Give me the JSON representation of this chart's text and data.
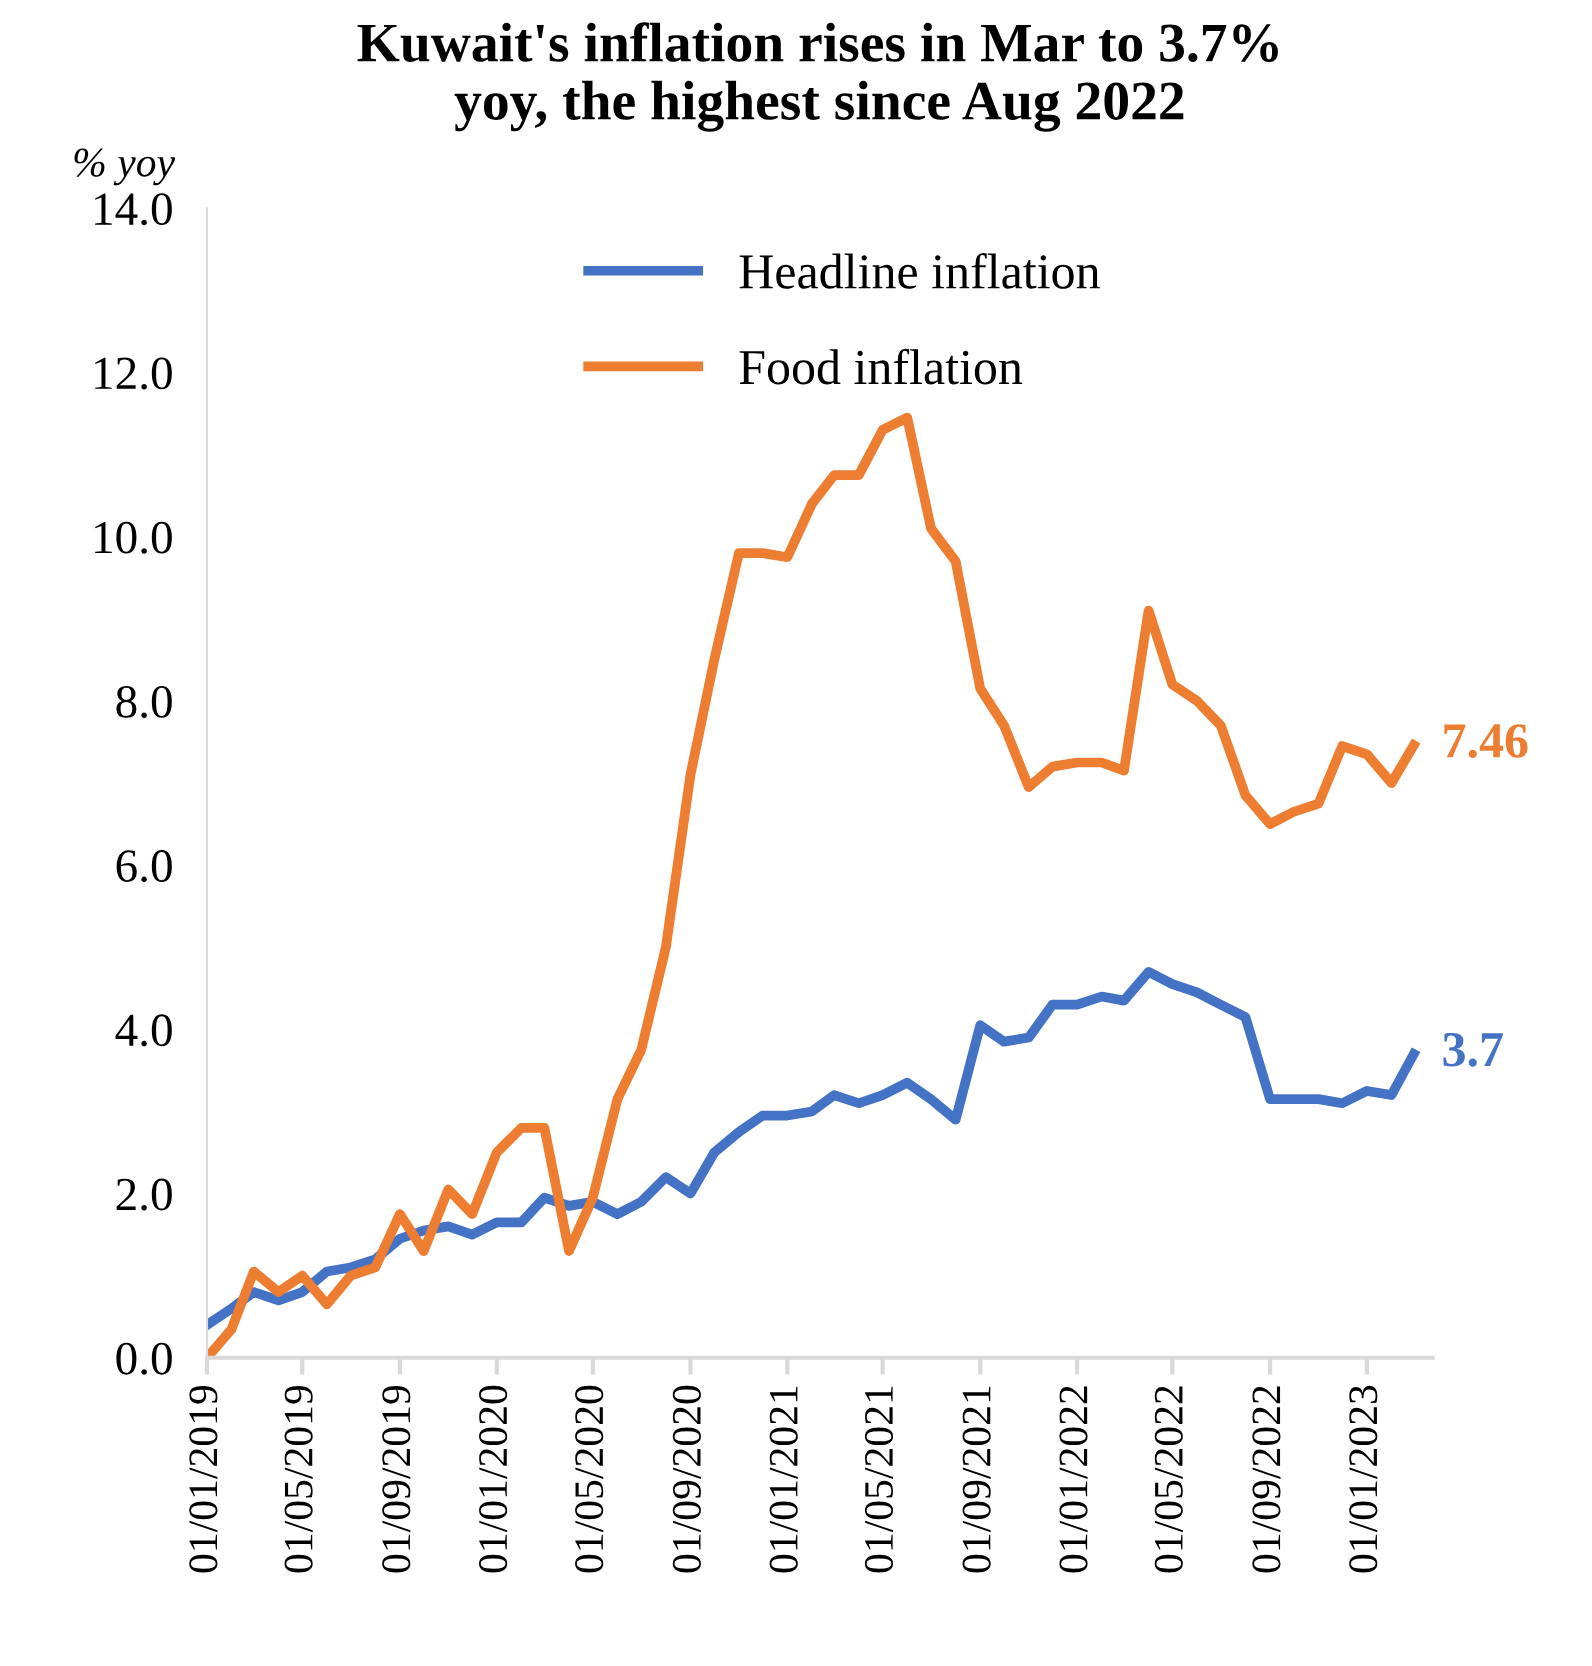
{
  "chart_data": {
    "type": "line",
    "title": "Kuwait's inflation rises in Mar to 3.7%\nyoy, the highest since Aug 2022",
    "ylabel": "% yoy",
    "x": [
      "2019-01-01",
      "2019-02-01",
      "2019-03-01",
      "2019-04-01",
      "2019-05-01",
      "2019-06-01",
      "2019-07-01",
      "2019-08-01",
      "2019-09-01",
      "2019-10-01",
      "2019-11-01",
      "2019-12-01",
      "2020-01-01",
      "2020-02-01",
      "2020-03-01",
      "2020-04-01",
      "2020-05-01",
      "2020-06-01",
      "2020-07-01",
      "2020-08-01",
      "2020-09-01",
      "2020-10-01",
      "2020-11-01",
      "2020-12-01",
      "2021-01-01",
      "2021-02-01",
      "2021-03-01",
      "2021-04-01",
      "2021-05-01",
      "2021-06-01",
      "2021-07-01",
      "2021-08-01",
      "2021-09-01",
      "2021-10-01",
      "2021-11-01",
      "2021-12-01",
      "2022-01-01",
      "2022-02-01",
      "2022-03-01",
      "2022-04-01",
      "2022-05-01",
      "2022-06-01",
      "2022-07-01",
      "2022-08-01",
      "2022-09-01",
      "2022-10-01",
      "2022-11-01",
      "2022-12-01",
      "2023-01-01",
      "2023-02-01",
      "2023-03-01"
    ],
    "series": [
      {
        "name": "Headline inflation",
        "color": "#4472c4",
        "values": [
          0.4,
          0.6,
          0.8,
          0.7,
          0.8,
          1.05,
          1.1,
          1.2,
          1.45,
          1.55,
          1.6,
          1.5,
          1.65,
          1.65,
          1.95,
          1.85,
          1.9,
          1.75,
          1.9,
          2.2,
          2.0,
          2.5,
          2.75,
          2.95,
          2.95,
          3.0,
          3.2,
          3.1,
          3.2,
          3.35,
          3.15,
          2.9,
          4.05,
          3.85,
          3.9,
          4.3,
          4.3,
          4.4,
          4.35,
          4.7,
          4.55,
          4.45,
          4.3,
          4.15,
          3.15,
          3.15,
          3.15,
          3.1,
          3.25,
          3.2,
          3.7
        ]
      },
      {
        "name": "Food inflation",
        "color": "#ed7d31",
        "values": [
          0.0,
          0.35,
          1.05,
          0.8,
          1.0,
          0.65,
          1.0,
          1.1,
          1.75,
          1.3,
          2.05,
          1.75,
          2.5,
          2.8,
          2.8,
          1.3,
          1.95,
          3.15,
          3.75,
          5.0,
          7.1,
          8.5,
          9.8,
          9.8,
          9.75,
          10.4,
          10.75,
          10.75,
          11.3,
          11.45,
          10.1,
          9.7,
          8.15,
          7.7,
          6.95,
          7.2,
          7.25,
          7.25,
          7.15,
          9.1,
          8.2,
          8.0,
          7.7,
          6.85,
          6.5,
          6.65,
          6.75,
          7.45,
          7.35,
          7.0,
          7.46
        ]
      }
    ],
    "annotations": [
      {
        "text": "3.7",
        "x": "2023-03-01",
        "y": 3.7
      },
      {
        "text": "7.46",
        "x": "2023-03-01",
        "y": 7.46
      }
    ],
    "xlim": [
      "2019-01-01",
      "2023-03-25"
    ],
    "xticks": [
      {
        "value": "2019-01-01",
        "label": "01/01/2019"
      },
      {
        "value": "2019-05-01",
        "label": "01/05/2019"
      },
      {
        "value": "2019-09-01",
        "label": "01/09/2019"
      },
      {
        "value": "2020-01-01",
        "label": "01/01/2020"
      },
      {
        "value": "2020-05-01",
        "label": "01/05/2020"
      },
      {
        "value": "2020-09-01",
        "label": "01/09/2020"
      },
      {
        "value": "2021-01-01",
        "label": "01/01/2021"
      },
      {
        "value": "2021-05-01",
        "label": "01/05/2021"
      },
      {
        "value": "2021-09-01",
        "label": "01/09/2021"
      },
      {
        "value": "2022-01-01",
        "label": "01/01/2022"
      },
      {
        "value": "2022-05-01",
        "label": "01/05/2022"
      },
      {
        "value": "2022-09-01",
        "label": "01/09/2022"
      },
      {
        "value": "2023-01-01",
        "label": "01/01/2023"
      }
    ],
    "ylim": [
      0,
      14
    ],
    "yticks": [
      {
        "value": 0,
        "label": "0.0"
      },
      {
        "value": 2,
        "label": "2.0"
      },
      {
        "value": 4,
        "label": "4.0"
      },
      {
        "value": 6,
        "label": "6.0"
      },
      {
        "value": 8,
        "label": "8.0"
      },
      {
        "value": 10,
        "label": "10.0"
      },
      {
        "value": 12,
        "label": "12.0"
      },
      {
        "value": 14,
        "label": "14.0"
      }
    ],
    "legend": "top",
    "grid": false,
    "marker": "none",
    "line_style": "solid"
  }
}
